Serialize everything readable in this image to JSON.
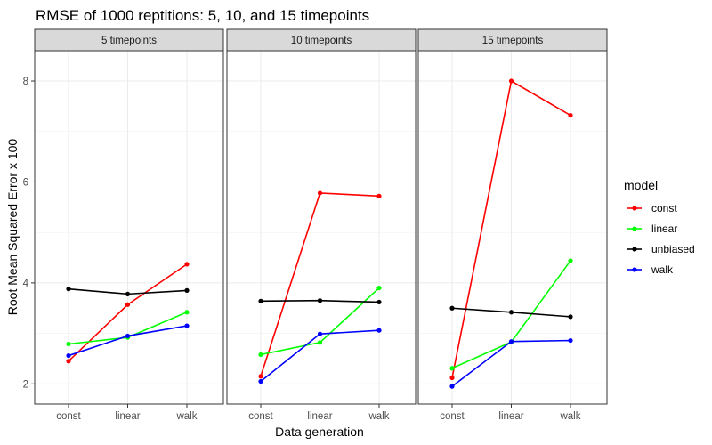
{
  "chart_data": {
    "type": "line",
    "title": "RMSE of 1000 reptitions: 5, 10, and 15 timepoints",
    "xlabel": "Data generation",
    "ylabel": "Root Mean Squared Error x 100",
    "ylim": [
      1.6,
      8.6
    ],
    "yticks": [
      2,
      4,
      6,
      8
    ],
    "categories": [
      "const",
      "linear",
      "walk"
    ],
    "grid": true,
    "legend": {
      "title": "model",
      "position": "right",
      "entries": [
        {
          "name": "const",
          "color": "#ff0000"
        },
        {
          "name": "linear",
          "color": "#00ff00"
        },
        {
          "name": "unbiased",
          "color": "#000000"
        },
        {
          "name": "walk",
          "color": "#0000ff"
        }
      ]
    },
    "panels": [
      {
        "label": "5 timepoints",
        "series": [
          {
            "name": "const",
            "values": [
              2.45,
              3.57,
              4.37
            ]
          },
          {
            "name": "linear",
            "values": [
              2.79,
              2.92,
              3.42
            ]
          },
          {
            "name": "unbiased",
            "values": [
              3.88,
              3.78,
              3.85
            ]
          },
          {
            "name": "walk",
            "values": [
              2.56,
              2.95,
              3.15
            ]
          }
        ]
      },
      {
        "label": "10 timepoints",
        "series": [
          {
            "name": "const",
            "values": [
              2.15,
              5.78,
              5.72
            ]
          },
          {
            "name": "linear",
            "values": [
              2.58,
              2.82,
              3.9
            ]
          },
          {
            "name": "unbiased",
            "values": [
              3.64,
              3.65,
              3.62
            ]
          },
          {
            "name": "walk",
            "values": [
              2.05,
              2.99,
              3.06
            ]
          }
        ]
      },
      {
        "label": "15 timepoints",
        "series": [
          {
            "name": "const",
            "values": [
              2.12,
              8.0,
              7.32
            ]
          },
          {
            "name": "linear",
            "values": [
              2.31,
              2.83,
              4.44
            ]
          },
          {
            "name": "unbiased",
            "values": [
              3.5,
              3.42,
              3.33
            ]
          },
          {
            "name": "walk",
            "values": [
              1.95,
              2.84,
              2.86
            ]
          }
        ]
      }
    ]
  }
}
